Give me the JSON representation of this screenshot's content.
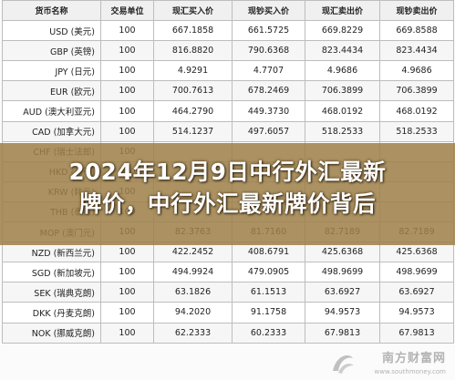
{
  "table": {
    "headers": [
      "货币名称",
      "交易单位",
      "现汇买入价",
      "现钞买入价",
      "现汇卖出价",
      "现钞卖出价"
    ],
    "rows": [
      [
        "USD (美元)",
        "100",
        "667.1858",
        "661.5725",
        "669.8229",
        "669.8588"
      ],
      [
        "GBP (英镑)",
        "100",
        "816.8820",
        "790.6368",
        "823.4434",
        "823.4434"
      ],
      [
        "JPY (日元)",
        "100",
        "4.9291",
        "4.7707",
        "4.9686",
        "4.9686"
      ],
      [
        "EUR (欧元)",
        "100",
        "700.7613",
        "678.2469",
        "706.3899",
        "706.3899"
      ],
      [
        "AUD (澳大利亚元)",
        "100",
        "464.2790",
        "449.3730",
        "468.0192",
        "468.0192"
      ],
      [
        "CAD (加拿大元)",
        "100",
        "514.1237",
        "497.6057",
        "518.2533",
        "518.2533"
      ],
      [
        "CHF (瑞士法郎)",
        "100",
        "",
        "",
        "",
        ""
      ],
      [
        "HKD (港币)",
        "100",
        "",
        "",
        "",
        ""
      ],
      [
        "KRW (韩元)",
        "100",
        "",
        "",
        "",
        ""
      ],
      [
        "THB (泰铢)",
        "100",
        "",
        "",
        "",
        ""
      ],
      [
        "MOP (澳门元)",
        "100",
        "82.3763",
        "81.7160",
        "82.7189",
        "82.7189"
      ],
      [
        "NZD (新西兰元)",
        "100",
        "422.2452",
        "408.6791",
        "425.6368",
        "425.6368"
      ],
      [
        "SGD (新加坡元)",
        "100",
        "494.9924",
        "479.0905",
        "498.9699",
        "498.9699"
      ],
      [
        "SEK (瑞典克朗)",
        "100",
        "63.1826",
        "61.1513",
        "63.6927",
        "63.6927"
      ],
      [
        "DKK (丹麦克朗)",
        "100",
        "94.2020",
        "91.1758",
        "94.9573",
        "94.9573"
      ],
      [
        "NOK (挪威克朗)",
        "100",
        "62.2333",
        "60.2333",
        "67.9813",
        "67.9813"
      ]
    ]
  },
  "banner": {
    "line1": "2024年12月9日中行外汇最新",
    "line2": "牌价，中行外汇最新牌价背后"
  },
  "watermark": {
    "text": "南方财富网",
    "sub": "www.southmoney.com"
  },
  "colors": {
    "banner": "#9e8048",
    "grid": "#bdbdbd"
  }
}
